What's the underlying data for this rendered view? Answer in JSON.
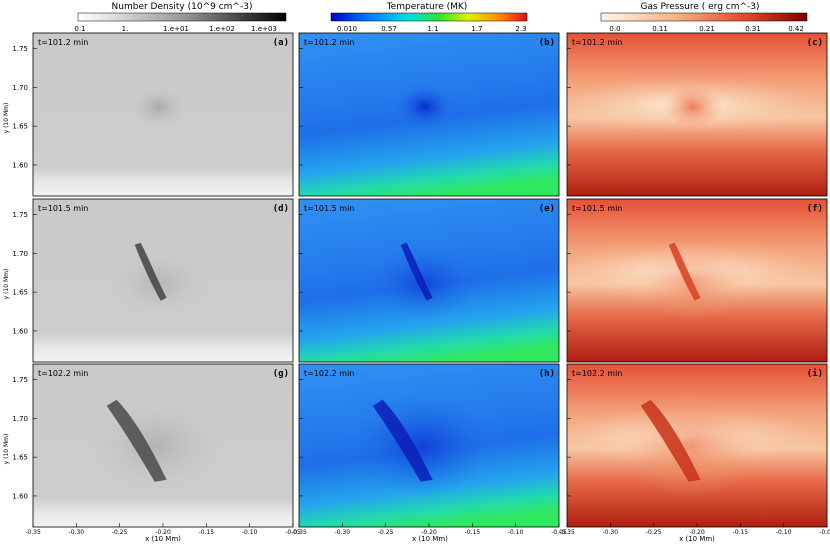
{
  "colorbars": [
    {
      "title": "Number Density  (10^9 cm^-3)",
      "ticks": [
        "0.1",
        "1.",
        "1.e+01",
        "1.e+02",
        "1.e+03"
      ],
      "colormap": "grayscale"
    },
    {
      "title": "Temperature (MK)",
      "ticks": [
        "0.010",
        "0.57",
        "1.1",
        "1.7",
        "2.3"
      ],
      "colormap": "rainbow"
    },
    {
      "title": "Gas Pressure ( erg cm^-3)",
      "ticks": [
        "0.0",
        "0.11",
        "0.21",
        "0.31",
        "0.42"
      ],
      "colormap": "reds"
    }
  ],
  "times": [
    "t=101.2 min",
    "t=101.5 min",
    "t=102.2 min"
  ],
  "panel_labels": [
    "(a)",
    "(b)",
    "(c)",
    "(d)",
    "(e)",
    "(f)",
    "(g)",
    "(h)",
    "(i)"
  ],
  "ylabel": "y (10 Mm)",
  "xlabel": "x (10 Mm)",
  "chart_data": {
    "type": "heatmap",
    "description_panels": "3x3 grid: rows are times, columns are number density, temperature, gas pressure",
    "xlim": [
      -0.35,
      -0.05
    ],
    "ylim": [
      1.56,
      1.77
    ],
    "xticks": [
      -0.35,
      -0.3,
      -0.25,
      -0.2,
      -0.15,
      -0.1,
      -0.05
    ],
    "xtick_labels": [
      "-0.35",
      "-0.30",
      "-0.25",
      "-0.20",
      "-0.15",
      "-0.10",
      "-0.05"
    ],
    "yticks": [
      1.6,
      1.65,
      1.7,
      1.75
    ],
    "ytick_labels": [
      "1.60",
      "1.65",
      "1.70",
      "1.75"
    ],
    "colors": {
      "dense": "#404040",
      "cool": "#1030d0",
      "hot_blue": "#2a8ff0",
      "low_p": "#fbe2c8",
      "high_p": "#c22818"
    }
  }
}
